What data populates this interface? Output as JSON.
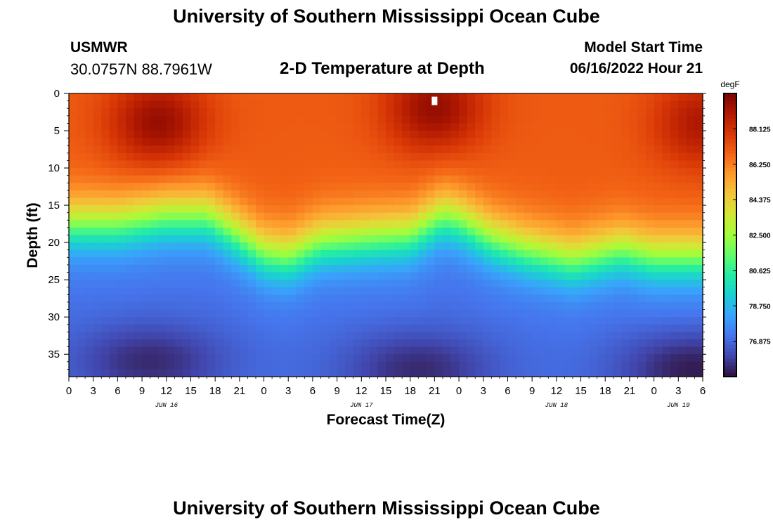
{
  "header": {
    "title": "University of Southern Mississippi Ocean Cube",
    "station_name": "USMWR",
    "station_coords": "30.0757N  88.7961W",
    "subtitle": "2-D Temperature at Depth",
    "model_label": "Model Start Time",
    "model_time": "06/16/2022 Hour 21"
  },
  "footer": {
    "title": "University of Southern Mississippi Ocean Cube"
  },
  "chart_data": {
    "type": "heatmap",
    "title": "2-D Temperature at Depth",
    "xlabel": "Forecast Time(Z)",
    "ylabel": "Depth (ft)",
    "x_start_hour": 0,
    "x_end_hour": 78,
    "x_tick_step_hours": 3,
    "x_tick_labels": [
      "0",
      "3",
      "6",
      "9",
      "12",
      "15",
      "18",
      "21",
      "0",
      "3",
      "6",
      "9",
      "12",
      "15",
      "18",
      "21",
      "0",
      "3",
      "6",
      "9",
      "12",
      "15",
      "18",
      "21",
      "0",
      "3",
      "6"
    ],
    "day_labels": [
      {
        "hour": 12,
        "label": "JUN 16"
      },
      {
        "hour": 36,
        "label": "JUN 17"
      },
      {
        "hour": 60,
        "label": "JUN 18"
      },
      {
        "hour": 75,
        "label": "JUN 19"
      }
    ],
    "ylim": [
      0,
      38
    ],
    "y_ticks": [
      0,
      5,
      10,
      15,
      20,
      25,
      30,
      35
    ],
    "colorbar": {
      "unit": "degF",
      "vmin": 75.0,
      "vmax": 90.0,
      "tick_values": [
        76.875,
        78.75,
        80.625,
        82.5,
        84.375,
        86.25,
        88.125
      ],
      "tick_labels": [
        "76.875",
        "78.750",
        "80.625",
        "82.500",
        "84.375",
        "86.250",
        "88.125"
      ],
      "colors": [
        "#30123b",
        "#4145ab",
        "#4675ed",
        "#39a2fc",
        "#1bcfd4",
        "#24eca6",
        "#61fc6c",
        "#a4fc3b",
        "#d1e834",
        "#f3c63a",
        "#fe9b2d",
        "#f36315",
        "#d93806",
        "#b11901",
        "#7a0402"
      ]
    },
    "thermocline_depth_ft_by_hour": [
      [
        0,
        17.5
      ],
      [
        6,
        17.5
      ],
      [
        12,
        16.5
      ],
      [
        17,
        16.5
      ],
      [
        20,
        18.5
      ],
      [
        24,
        21.5
      ],
      [
        27,
        22.0
      ],
      [
        31,
        20.0
      ],
      [
        36,
        19.5
      ],
      [
        42,
        19.0
      ],
      [
        46,
        16.5
      ],
      [
        48,
        17.0
      ],
      [
        52,
        19.5
      ],
      [
        56,
        21.0
      ],
      [
        60,
        22.0
      ],
      [
        62,
        22.5
      ],
      [
        66,
        21.5
      ],
      [
        68,
        21.0
      ],
      [
        72,
        22.0
      ],
      [
        78,
        22.0
      ]
    ],
    "warm_cores": [
      {
        "hour": 11,
        "depth_ft": 4,
        "temp_degF": 89.5
      },
      {
        "hour": 45,
        "depth_ft": 2,
        "temp_degF": 89.5
      },
      {
        "hour": 78,
        "depth_ft": 4,
        "temp_degF": 89.0
      }
    ],
    "cold_cores": [
      {
        "hour": 10,
        "depth_ft": 36,
        "temp_degF": 75.5
      },
      {
        "hour": 43,
        "depth_ft": 37,
        "temp_degF": 75.5
      },
      {
        "hour": 77,
        "depth_ft": 37,
        "temp_degF": 75.2
      }
    ],
    "marker": {
      "hour": 45,
      "depth_ft": 1
    }
  }
}
